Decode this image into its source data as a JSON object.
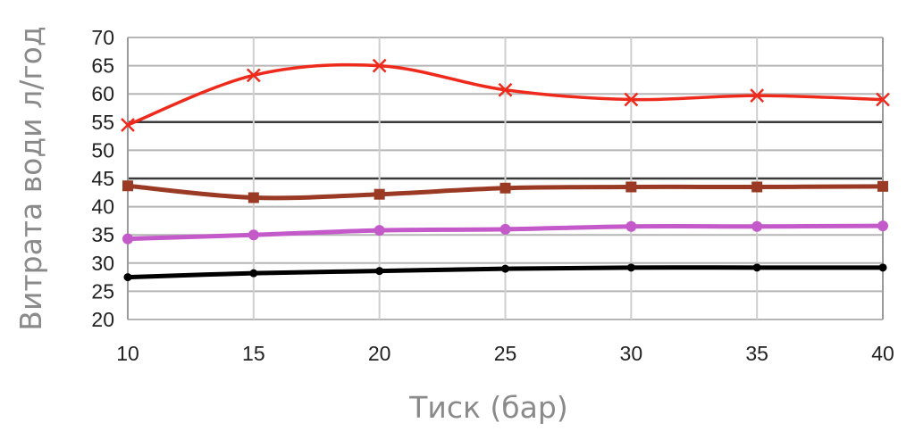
{
  "chart_data": {
    "type": "line",
    "title": "",
    "xlabel": "Тиск (бар)",
    "ylabel": "Витрата води  л/год",
    "x": [
      10,
      15,
      20,
      25,
      30,
      35,
      40
    ],
    "xlim": [
      10,
      40
    ],
    "ylim": [
      20,
      70
    ],
    "yticks": [
      20,
      25,
      30,
      35,
      40,
      45,
      50,
      55,
      60,
      65,
      70
    ],
    "grid": true,
    "legend": "none",
    "series": [
      {
        "color": "#ee2a1c",
        "marker": "x",
        "smooth": true,
        "values": [
          54.5,
          63.3,
          65.0,
          60.7,
          59.0,
          59.7,
          59.0
        ]
      },
      {
        "color": "#9b3a24",
        "marker": "square",
        "smooth": true,
        "values": [
          43.7,
          41.6,
          42.2,
          43.3,
          43.5,
          43.5,
          43.6
        ]
      },
      {
        "color": "#c45ac9",
        "marker": "circle",
        "smooth": true,
        "values": [
          34.3,
          35.0,
          35.8,
          36.0,
          36.5,
          36.5,
          36.6
        ]
      },
      {
        "color": "#000000",
        "marker": "dot",
        "smooth": true,
        "values": [
          27.5,
          28.2,
          28.6,
          29.0,
          29.2,
          29.2,
          29.2
        ]
      }
    ]
  }
}
